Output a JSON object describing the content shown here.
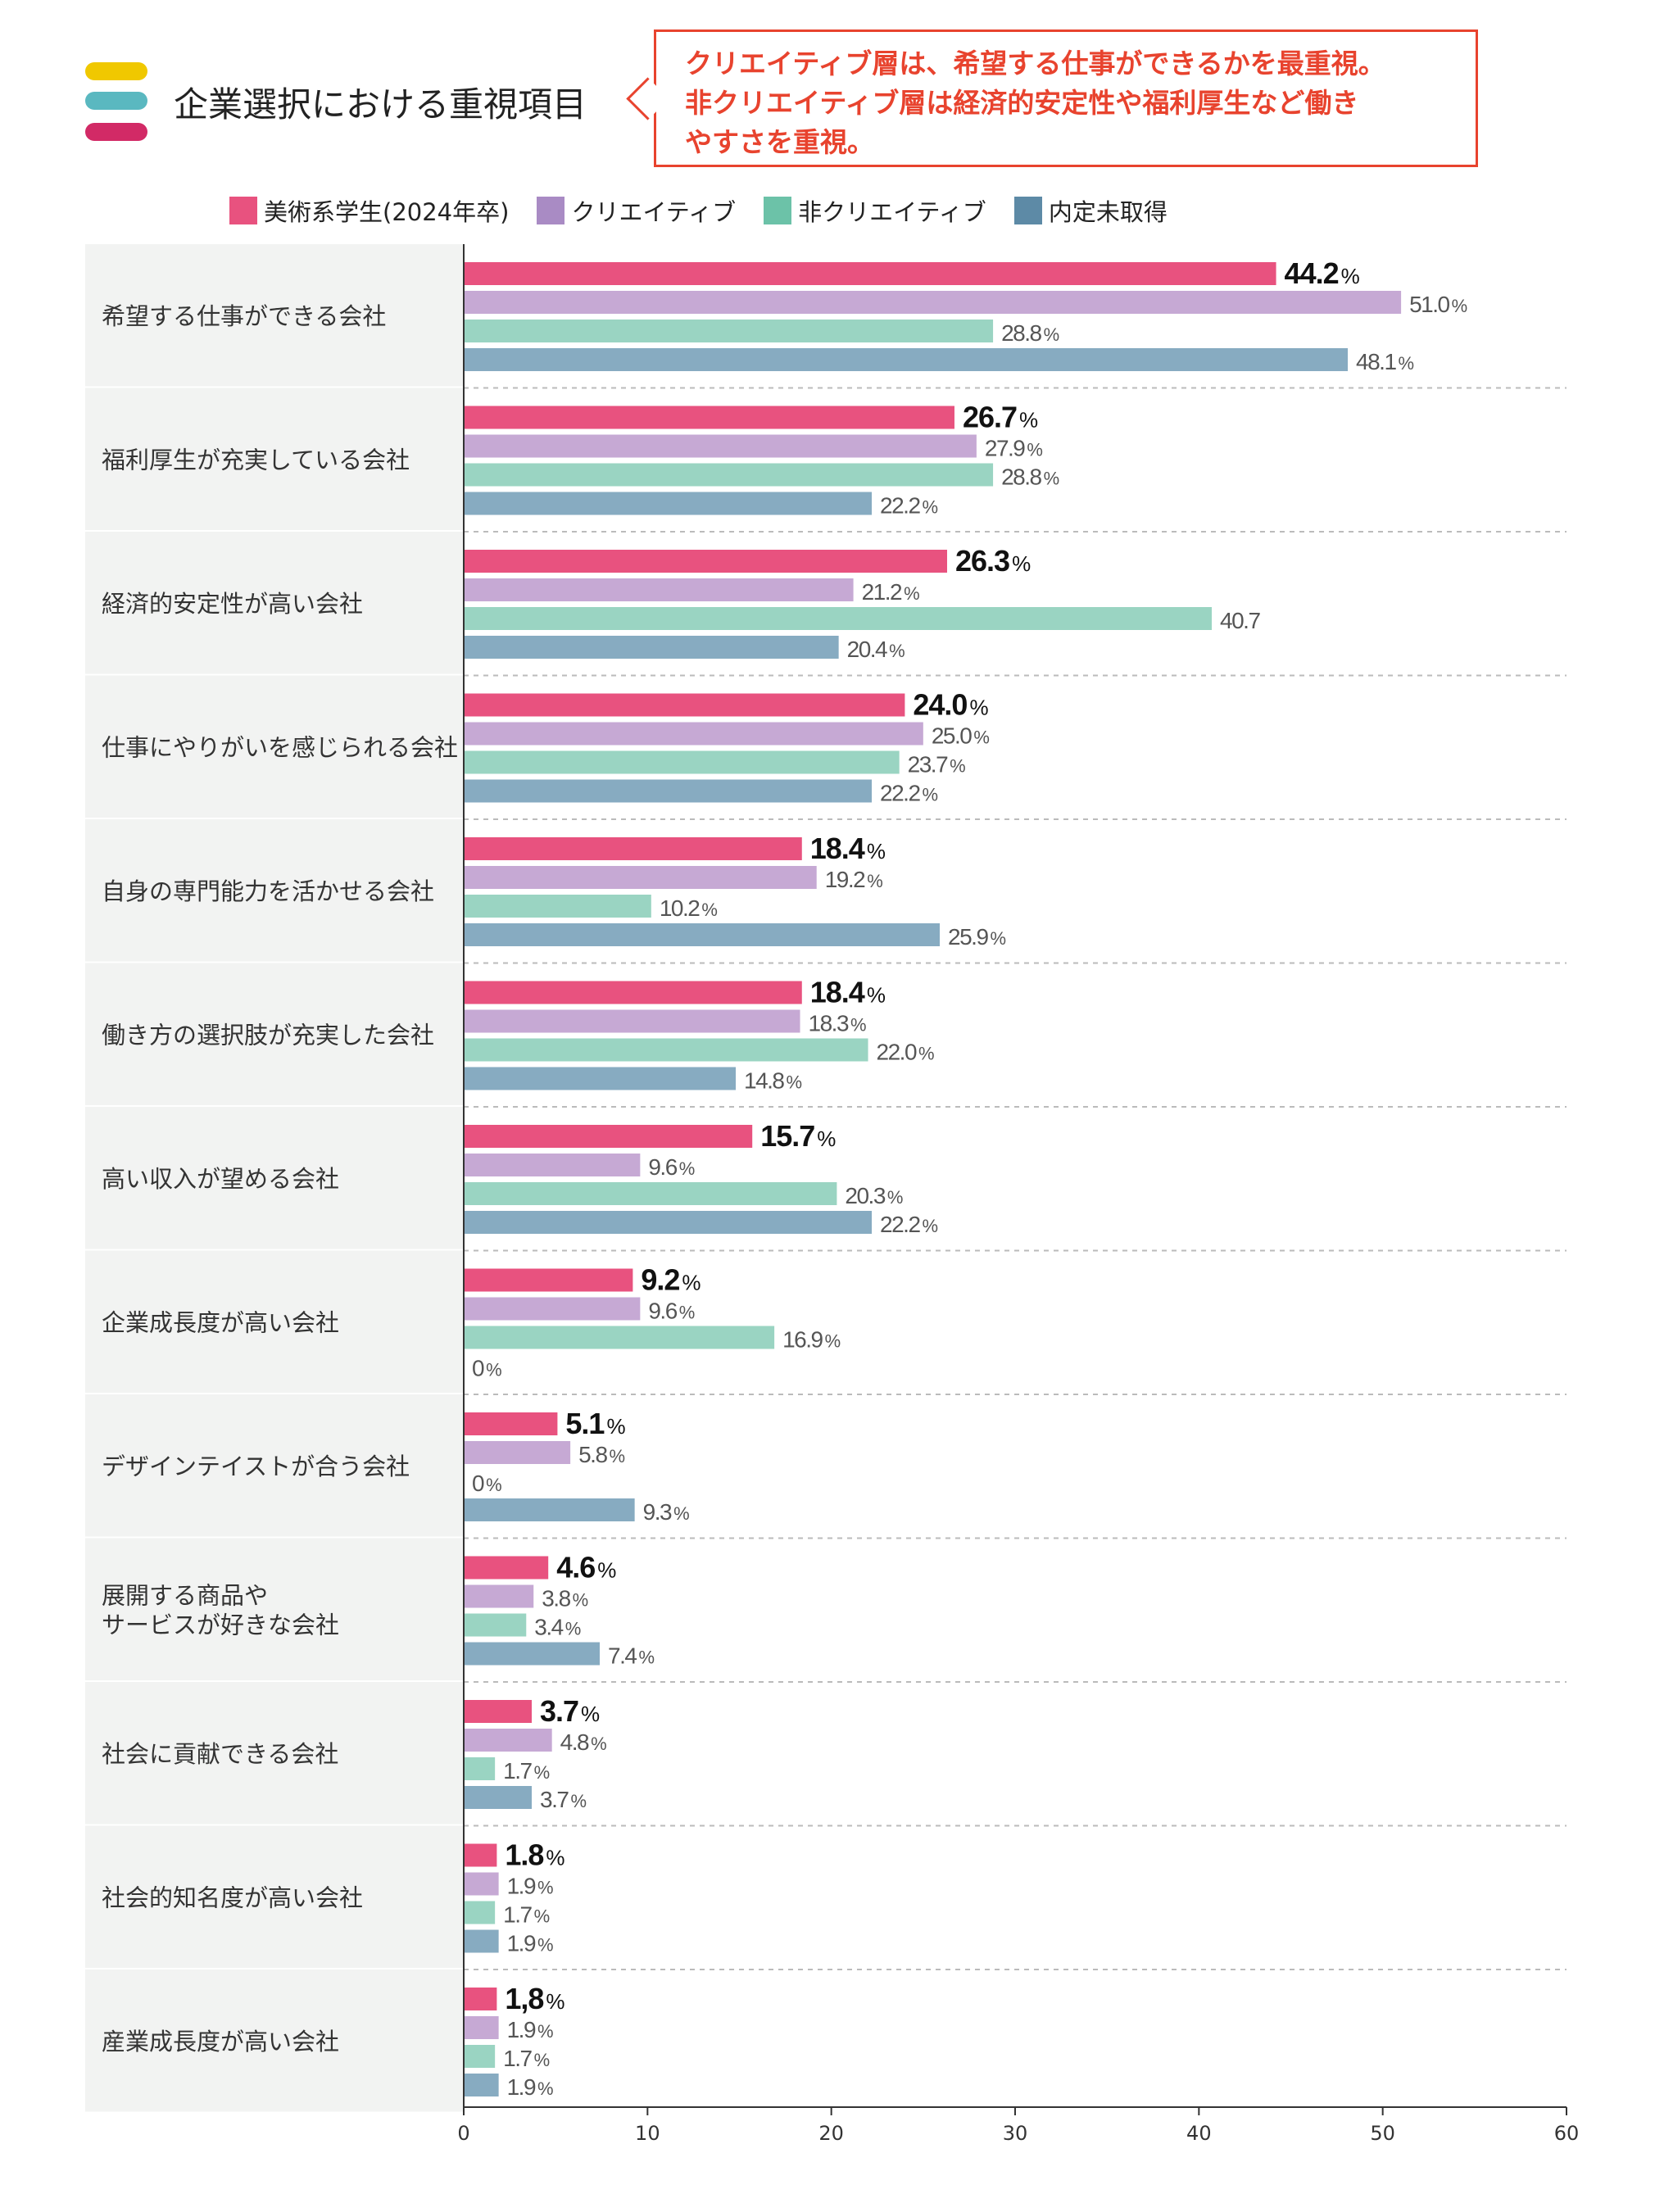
{
  "header": {
    "title": "企業選択における重視項目",
    "callout": "クリエイティブ層は、希望する仕事ができるかを最重視。\n非クリエイティブ層は経済的安定性や福利厚生など働き\nやすさを重視。",
    "deco_colors": [
      "#f0c800",
      "#5ab8c0",
      "#d22a66"
    ]
  },
  "chart_data": {
    "type": "bar",
    "orientation": "horizontal",
    "title": "企業選択における重視項目",
    "xlim": [
      0,
      60
    ],
    "xticks": [
      0,
      10,
      20,
      30,
      40,
      50,
      60
    ],
    "categories": [
      "希望する仕事ができる会社",
      "福利厚生が充実している会社",
      "経済的安定性が高い会社",
      "仕事にやりがいを感じられる会社",
      "自身の専門能力を活かせる会社",
      "働き方の選択肢が充実した会社",
      "高い収入が望める会社",
      "企業成長度が高い会社",
      "デザインテイストが合う会社",
      "展開する商品や\nサービスが好きな会社",
      "社会に貢献できる会社",
      "社会的知名度が高い会社",
      "産業成長度が高い会社"
    ],
    "series": [
      {
        "name": "美術系学生(2024年卒)",
        "color": "#e8527f",
        "values": [
          44.2,
          26.7,
          26.3,
          24.0,
          18.4,
          18.4,
          15.7,
          9.2,
          5.1,
          4.6,
          3.7,
          1.8,
          1.8
        ],
        "labels": [
          "44.2",
          "26.7",
          "26.3",
          "24.0",
          "18.4",
          "18.4",
          "15.7",
          "9.2",
          "5.1",
          "4.6",
          "3.7",
          "1.8",
          "1,8"
        ],
        "units": [
          "%",
          "%",
          "%",
          "%",
          "%",
          "%",
          "%",
          "%",
          "%",
          "%",
          "%",
          "%",
          "%"
        ]
      },
      {
        "name": "クリエイティブ",
        "color": "#c6a9d4",
        "values": [
          51.0,
          27.9,
          21.2,
          25.0,
          19.2,
          18.3,
          9.6,
          9.6,
          5.8,
          3.8,
          4.8,
          1.9,
          1.9
        ],
        "labels": [
          "51.0",
          "27.9",
          "21.2",
          "25.0",
          "19.2",
          "18.3",
          "9.6",
          "9.6",
          "5.8",
          "3.8",
          "4.8",
          "1.9",
          "1.9"
        ],
        "units": [
          "%",
          "%",
          "%",
          "%",
          "%",
          "%",
          "%",
          "%",
          "%",
          "%",
          "%",
          "%",
          "%"
        ]
      },
      {
        "name": "非クリエイティブ",
        "color": "#9ad4c2",
        "values": [
          28.8,
          28.8,
          40.7,
          23.7,
          10.2,
          22.0,
          20.3,
          16.9,
          0,
          3.4,
          1.7,
          1.7,
          1.7
        ],
        "labels": [
          "28.8",
          "28.8",
          "40.7",
          "23.7",
          "10.2",
          "22.0",
          "20.3",
          "16.9",
          "0",
          "3.4",
          "1.7",
          "1.7",
          "1.7"
        ],
        "units": [
          "%",
          "%",
          "",
          "%",
          "%",
          "%",
          "%",
          "%",
          "%",
          "%",
          "%",
          "%",
          "%"
        ]
      },
      {
        "name": "内定未取得",
        "color": "#87abc1",
        "values": [
          48.1,
          22.2,
          20.4,
          22.2,
          25.9,
          14.8,
          22.2,
          0,
          9.3,
          7.4,
          3.7,
          1.9,
          1.9
        ],
        "labels": [
          "48.1",
          "22.2",
          "20.4",
          "22.2",
          "25.9",
          "14.8",
          "22.2",
          "0",
          "9.3",
          "7.4",
          "3.7",
          "1.9",
          "1.9"
        ],
        "units": [
          "%",
          "%",
          "%",
          "%",
          "%",
          "%",
          "%",
          "%",
          "%",
          "%",
          "%",
          "%",
          "%"
        ]
      }
    ]
  },
  "legend_colors": [
    "#e8527f",
    "#a98bc4",
    "#6cc2a8",
    "#5d8aa6"
  ]
}
